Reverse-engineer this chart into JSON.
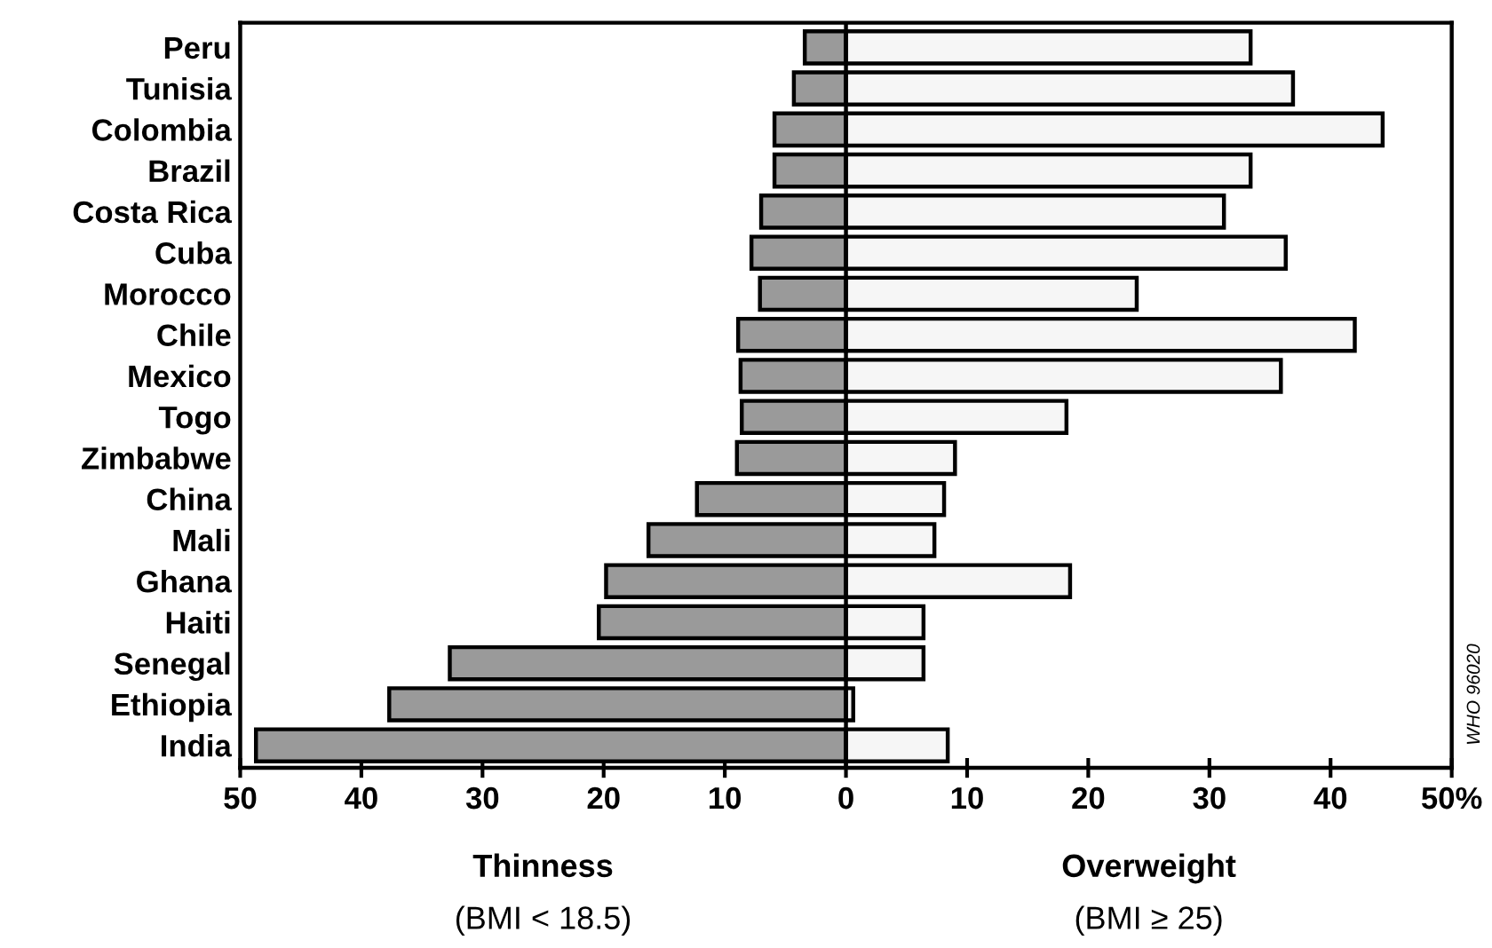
{
  "chart_data": {
    "type": "bar",
    "orientation": "horizontal",
    "stacked": true,
    "categories": [
      "Peru",
      "Tunisia",
      "Colombia",
      "Brazil",
      "Costa Rica",
      "Cuba",
      "Morocco",
      "Chile",
      "Mexico",
      "Togo",
      "Zimbabwe",
      "China",
      "Mali",
      "Ghana",
      "Haiti",
      "Senegal",
      "Ethiopia",
      "India"
    ],
    "series": [
      {
        "name": "Thinness",
        "color": "#9a9a9a",
        "values": [
          -3.4,
          -4.3,
          -5.9,
          -5.9,
          -7.0,
          -7.8,
          -7.1,
          -8.9,
          -8.7,
          -8.6,
          -9.0,
          -12.3,
          -16.3,
          -19.8,
          -20.4,
          -32.7,
          -37.7,
          -48.7
        ]
      },
      {
        "name": "Overweight",
        "color": "#f6f6f6",
        "values": [
          33.4,
          36.9,
          44.3,
          33.4,
          31.2,
          36.3,
          24.0,
          42.0,
          35.9,
          18.2,
          9.0,
          8.1,
          7.3,
          18.5,
          6.4,
          6.4,
          0.6,
          8.4
        ]
      }
    ],
    "xlim": [
      -50,
      50
    ],
    "xticks": [
      {
        "value": -50,
        "label": "50"
      },
      {
        "value": -40,
        "label": "40"
      },
      {
        "value": -30,
        "label": "30"
      },
      {
        "value": -20,
        "label": "20"
      },
      {
        "value": -10,
        "label": "10"
      },
      0,
      10,
      20,
      30,
      40,
      {
        "value": 50,
        "label": "50%"
      }
    ],
    "ref_lines": [
      {
        "axis": "x",
        "value": 0,
        "color": "#000000"
      }
    ],
    "annotations": [
      "(BMI < 18.5)",
      "(BMI ≥ 25)",
      "WHO 96020"
    ],
    "grid": false,
    "legend": false
  }
}
